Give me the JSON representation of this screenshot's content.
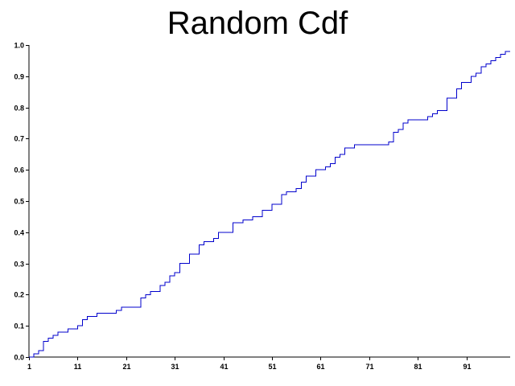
{
  "chart_data": {
    "type": "line",
    "subtype": "step",
    "title": "Random Cdf",
    "xlabel": "",
    "ylabel": "",
    "xlim": [
      1,
      100
    ],
    "ylim": [
      0,
      1
    ],
    "grid": false,
    "legend": "none",
    "series_color": "#0000cc",
    "x_ticks": [
      1,
      11,
      21,
      31,
      41,
      51,
      61,
      71,
      81,
      91
    ],
    "y_ticks": [
      "0.0",
      "0.1",
      "0.2",
      "0.3",
      "0.4",
      "0.5",
      "0.6",
      "0.7",
      "0.8",
      "0.9",
      "1.0"
    ],
    "series": [
      {
        "x": [
          1,
          2,
          3,
          4,
          5,
          6,
          7,
          9,
          11,
          12,
          13,
          15,
          19,
          20,
          21,
          24,
          25,
          26,
          28,
          29,
          30,
          31,
          32,
          34,
          36,
          37,
          39,
          40,
          43,
          45,
          47,
          49,
          51,
          53,
          54,
          56,
          57,
          58,
          60,
          62,
          63,
          64,
          65,
          66,
          68,
          75,
          76,
          77,
          78,
          79,
          83,
          84,
          85,
          87,
          89,
          90,
          92,
          93,
          94,
          95,
          96,
          97,
          98,
          99,
          100
        ],
        "values": [
          0.0,
          0.01,
          0.02,
          0.05,
          0.06,
          0.07,
          0.08,
          0.09,
          0.1,
          0.12,
          0.13,
          0.14,
          0.15,
          0.16,
          0.16,
          0.19,
          0.2,
          0.21,
          0.23,
          0.24,
          0.26,
          0.27,
          0.3,
          0.33,
          0.36,
          0.37,
          0.38,
          0.4,
          0.43,
          0.44,
          0.45,
          0.47,
          0.49,
          0.52,
          0.53,
          0.54,
          0.56,
          0.58,
          0.6,
          0.61,
          0.62,
          0.64,
          0.65,
          0.67,
          0.68,
          0.69,
          0.72,
          0.73,
          0.75,
          0.76,
          0.77,
          0.78,
          0.79,
          0.83,
          0.86,
          0.88,
          0.9,
          0.91,
          0.93,
          0.94,
          0.95,
          0.96,
          0.97,
          0.98,
          0.98
        ]
      }
    ]
  }
}
